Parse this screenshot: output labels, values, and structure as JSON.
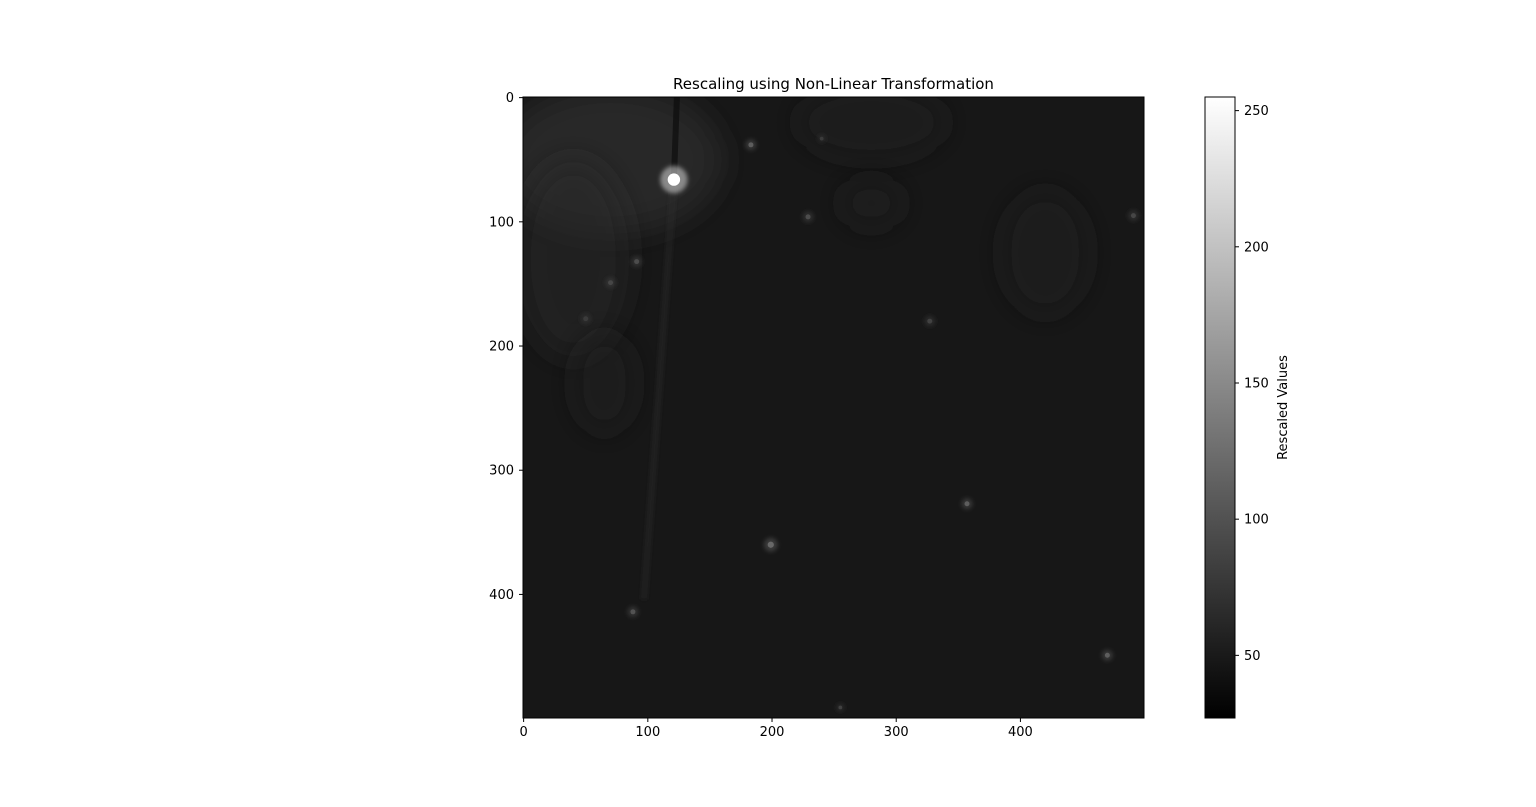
{
  "chart_data": {
    "type": "heatmap",
    "title": "Rescaling using Non-Linear Transformation",
    "xlabel": "",
    "ylabel": "",
    "x_range": [
      -0.5,
      499.5
    ],
    "y_range": [
      499.5,
      -0.5
    ],
    "x_ticks": [
      0,
      100,
      200,
      300,
      400
    ],
    "y_ticks": [
      0,
      100,
      200,
      300,
      400
    ],
    "colormap": "gray",
    "colorbar": {
      "label": "Rescaled Values",
      "range": [
        27,
        255
      ],
      "ticks": [
        50,
        100,
        150,
        200,
        250
      ]
    },
    "background_value": 48,
    "bright_spots": [
      {
        "x": 121,
        "y": 66,
        "value": 255,
        "spread": 5
      },
      {
        "x": 183,
        "y": 38,
        "value": 110,
        "spread": 2
      },
      {
        "x": 229,
        "y": 96,
        "value": 95,
        "spread": 2
      },
      {
        "x": 491,
        "y": 95,
        "value": 90,
        "spread": 2
      },
      {
        "x": 91,
        "y": 132,
        "value": 95,
        "spread": 2
      },
      {
        "x": 70,
        "y": 149,
        "value": 90,
        "spread": 2
      },
      {
        "x": 327,
        "y": 180,
        "value": 85,
        "spread": 2
      },
      {
        "x": 357,
        "y": 327,
        "value": 110,
        "spread": 2
      },
      {
        "x": 199,
        "y": 360,
        "value": 120,
        "spread": 2.5
      },
      {
        "x": 88,
        "y": 414,
        "value": 100,
        "spread": 2
      },
      {
        "x": 470,
        "y": 449,
        "value": 110,
        "spread": 2
      },
      {
        "x": 255,
        "y": 491,
        "value": 85,
        "spread": 1.5
      },
      {
        "x": 240,
        "y": 33,
        "value": 80,
        "spread": 1.5
      },
      {
        "x": 50,
        "y": 178,
        "value": 80,
        "spread": 2
      }
    ],
    "diffuse_regions": [
      {
        "x": 70,
        "y": 50,
        "rx": 90,
        "ry": 60,
        "value": 75
      },
      {
        "x": 40,
        "y": 130,
        "rx": 45,
        "ry": 80,
        "value": 60
      },
      {
        "x": 65,
        "y": 230,
        "rx": 25,
        "ry": 40,
        "value": 58
      },
      {
        "x": 280,
        "y": 20,
        "rx": 60,
        "ry": 30,
        "value": 55
      },
      {
        "x": 280,
        "y": 85,
        "rx": 25,
        "ry": 20,
        "value": 58
      },
      {
        "x": 420,
        "y": 125,
        "rx": 35,
        "ry": 50,
        "value": 57
      }
    ]
  }
}
